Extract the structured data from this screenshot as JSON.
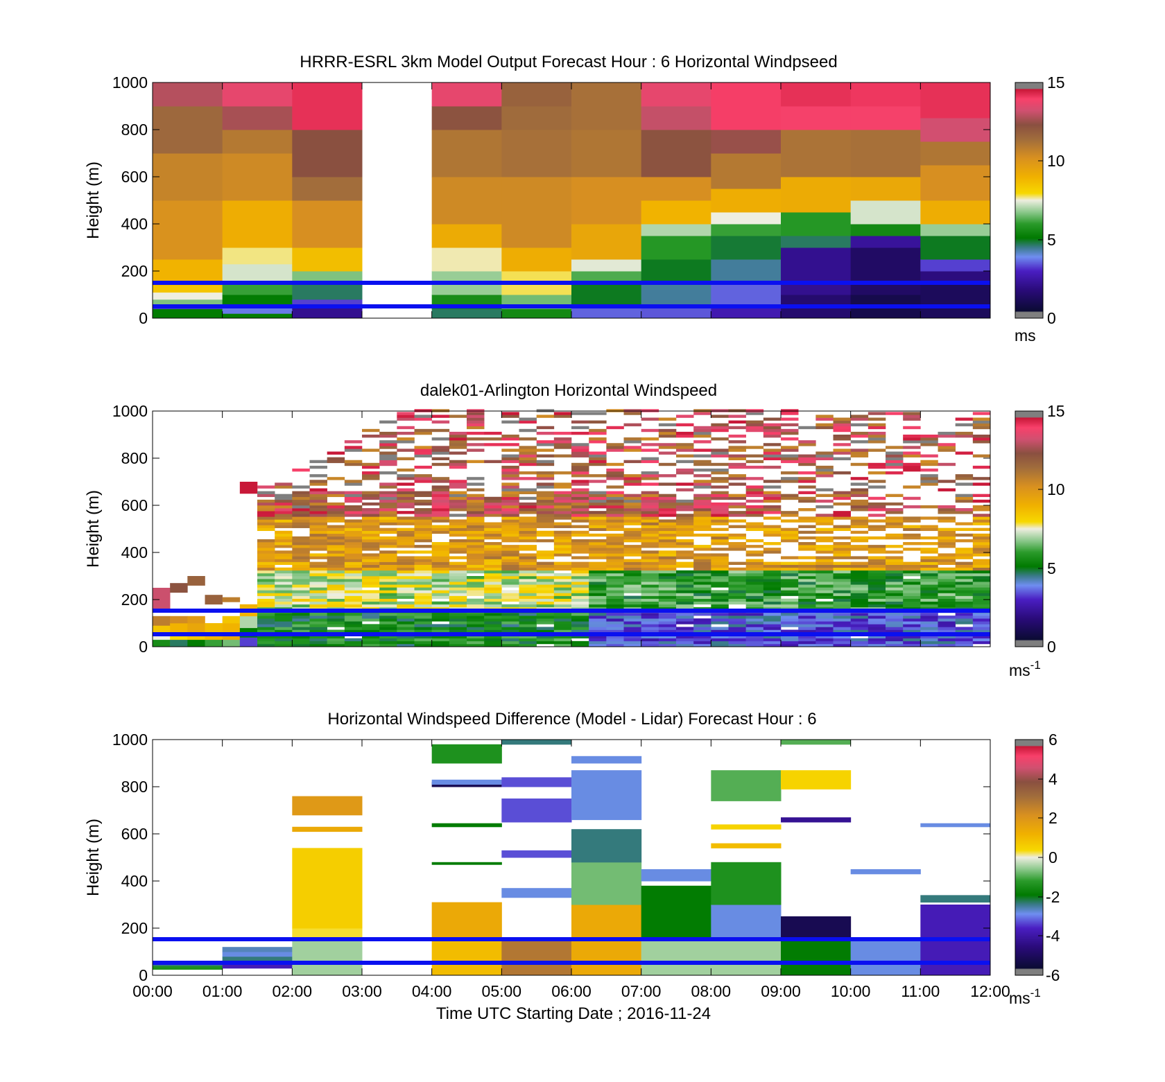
{
  "chart_data": [
    {
      "type": "heatmap",
      "title": "HRRR-ESRL 3km Model Output   Forecast Hour : 6 Horizontal Windpseed",
      "ylabel": "Height (m)",
      "xlabel": "",
      "ylim": [
        0,
        1000
      ],
      "xlim": [
        0,
        12
      ],
      "yticks": [
        "0",
        "200",
        "400",
        "600",
        "800",
        "1000"
      ],
      "xticks": [],
      "colorbar": {
        "min": 0,
        "max": 15,
        "ticks": [
          "0",
          "5",
          "10",
          "15"
        ],
        "unit_base": "ms",
        "unit_exp": ""
      },
      "reference_lines_m": [
        50,
        150
      ],
      "reference_line_color": "#0a10f0",
      "grid": false,
      "missing_hours": [
        3
      ],
      "columns": [
        [
          [
            0,
            40,
            5
          ],
          [
            40,
            60,
            3
          ],
          [
            60,
            80,
            6.6
          ],
          [
            80,
            110,
            7.5
          ],
          [
            110,
            140,
            8.5
          ],
          [
            140,
            250,
            9
          ],
          [
            250,
            500,
            10.3
          ],
          [
            500,
            700,
            10.8
          ],
          [
            700,
            900,
            11.8
          ],
          [
            900,
            1000,
            13.2
          ]
        ],
        [
          [
            0,
            20,
            5
          ],
          [
            20,
            50,
            3.5
          ],
          [
            50,
            100,
            5
          ],
          [
            100,
            150,
            6
          ],
          [
            150,
            230,
            7.3
          ],
          [
            230,
            300,
            7.7
          ],
          [
            300,
            500,
            9.2
          ],
          [
            500,
            700,
            10.6
          ],
          [
            700,
            800,
            11.2
          ],
          [
            800,
            900,
            13
          ],
          [
            900,
            1000,
            14
          ]
        ],
        [
          [
            0,
            50,
            1.8
          ],
          [
            50,
            80,
            3
          ],
          [
            80,
            150,
            4.5
          ],
          [
            150,
            200,
            6.6
          ],
          [
            200,
            300,
            8.7
          ],
          [
            300,
            500,
            10.4
          ],
          [
            500,
            600,
            11.6
          ],
          [
            600,
            800,
            12.6
          ],
          [
            800,
            1000,
            14.6
          ]
        ],
        [],
        [
          [
            0,
            40,
            4.5
          ],
          [
            40,
            100,
            5.5
          ],
          [
            100,
            200,
            6.8
          ],
          [
            200,
            300,
            7.6
          ],
          [
            300,
            400,
            9.3
          ],
          [
            400,
            600,
            10.6
          ],
          [
            600,
            800,
            11.3
          ],
          [
            800,
            900,
            12.5
          ],
          [
            900,
            1000,
            14
          ]
        ],
        [
          [
            0,
            40,
            5.4
          ],
          [
            40,
            100,
            6.5
          ],
          [
            100,
            200,
            7.8
          ],
          [
            200,
            300,
            9.2
          ],
          [
            300,
            600,
            10.6
          ],
          [
            600,
            800,
            11.5
          ],
          [
            800,
            900,
            11.7
          ],
          [
            900,
            1000,
            12
          ]
        ],
        [
          [
            0,
            50,
            3.3
          ],
          [
            50,
            150,
            4.8
          ],
          [
            150,
            200,
            6.2
          ],
          [
            200,
            250,
            7.4
          ],
          [
            250,
            400,
            9.5
          ],
          [
            400,
            600,
            10.4
          ],
          [
            600,
            800,
            11.3
          ],
          [
            800,
            1000,
            11.5
          ]
        ],
        [
          [
            0,
            50,
            3.2
          ],
          [
            50,
            150,
            4.2
          ],
          [
            150,
            250,
            4.8
          ],
          [
            250,
            350,
            5.8
          ],
          [
            350,
            400,
            7
          ],
          [
            400,
            500,
            9
          ],
          [
            500,
            600,
            10.4
          ],
          [
            600,
            800,
            12.5
          ],
          [
            800,
            900,
            13.4
          ],
          [
            900,
            1000,
            14
          ]
        ],
        [
          [
            0,
            50,
            2.4
          ],
          [
            50,
            150,
            3.3
          ],
          [
            150,
            250,
            4.2
          ],
          [
            250,
            350,
            4.7
          ],
          [
            350,
            400,
            6
          ],
          [
            400,
            450,
            7.5
          ],
          [
            450,
            550,
            9.2
          ],
          [
            550,
            700,
            11.2
          ],
          [
            700,
            800,
            12.8
          ],
          [
            800,
            1000,
            14.4
          ]
        ],
        [
          [
            0,
            100,
            1.2
          ],
          [
            100,
            300,
            1.8
          ],
          [
            300,
            350,
            4.5
          ],
          [
            350,
            450,
            5.8
          ],
          [
            450,
            600,
            9.3
          ],
          [
            600,
            800,
            11.4
          ],
          [
            800,
            900,
            14.3
          ],
          [
            900,
            1000,
            14.6
          ]
        ],
        [
          [
            0,
            100,
            0.5
          ],
          [
            100,
            300,
            1
          ],
          [
            300,
            350,
            2
          ],
          [
            350,
            400,
            5.4
          ],
          [
            400,
            500,
            7.3
          ],
          [
            500,
            600,
            9.4
          ],
          [
            600,
            800,
            11.5
          ],
          [
            800,
            900,
            14.3
          ],
          [
            900,
            1000,
            14.5
          ]
        ],
        [
          [
            0,
            150,
            0.8
          ],
          [
            150,
            200,
            1.5
          ],
          [
            200,
            250,
            3
          ],
          [
            250,
            350,
            4.8
          ],
          [
            350,
            400,
            6.8
          ],
          [
            400,
            500,
            9.2
          ],
          [
            500,
            650,
            10.4
          ],
          [
            650,
            750,
            11.3
          ],
          [
            750,
            850,
            13.6
          ],
          [
            850,
            1000,
            14.6
          ]
        ]
      ]
    },
    {
      "type": "heatmap",
      "title": "dalek01-Arlington  Horizontal Windspeed",
      "ylabel": "Height (m)",
      "xlabel": "",
      "ylim": [
        0,
        1000
      ],
      "xlim": [
        0,
        12
      ],
      "yticks": [
        "0",
        "200",
        "400",
        "600",
        "800",
        "1000"
      ],
      "xticks": [],
      "colorbar": {
        "min": 0,
        "max": 15,
        "ticks": [
          "0",
          "5",
          "10",
          "15"
        ],
        "unit_base": "ms",
        "unit_exp": "-1"
      },
      "reference_lines_m": [
        50,
        150
      ],
      "reference_line_color": "#0a10f0",
      "grid": false,
      "profile_interval_h": 0.25,
      "range_gate_m": 12,
      "columns_0000_0115": [
        [
          [
            0,
            30,
            5.5
          ],
          [
            30,
            60,
            7.5
          ],
          [
            60,
            90,
            8.5
          ],
          [
            90,
            130,
            11
          ],
          [
            150,
            250,
            13.5
          ]
        ],
        [
          [
            0,
            30,
            4.5
          ],
          [
            30,
            60,
            8
          ],
          [
            60,
            100,
            9
          ],
          [
            100,
            130,
            10.5
          ],
          [
            230,
            270,
            12.5
          ]
        ],
        [
          [
            0,
            30,
            5
          ],
          [
            30,
            60,
            8.5
          ],
          [
            60,
            100,
            9.5
          ],
          [
            100,
            130,
            10
          ],
          [
            260,
            300,
            12
          ]
        ],
        [
          [
            0,
            30,
            6
          ],
          [
            30,
            60,
            9
          ],
          [
            60,
            100,
            8.8
          ],
          [
            180,
            220,
            12
          ]
        ],
        [
          [
            0,
            30,
            6.5
          ],
          [
            30,
            60,
            9.5
          ],
          [
            60,
            100,
            9
          ],
          [
            100,
            130,
            8.5
          ],
          [
            190,
            210,
            11
          ]
        ],
        [
          [
            0,
            40,
            3
          ],
          [
            40,
            80,
            5
          ],
          [
            80,
            130,
            7
          ],
          [
            130,
            180,
            9
          ],
          [
            650,
            700,
            15
          ]
        ]
      ]
    },
    {
      "type": "heatmap",
      "title": "Horizontal Windspeed Difference (Model - Lidar) Forecast Hour : 6",
      "ylabel": "Height (m)",
      "xlabel": "Time UTC  Starting Date ; 2016-11-24",
      "ylim": [
        0,
        1000
      ],
      "xlim": [
        0,
        12
      ],
      "yticks": [
        "0",
        "200",
        "400",
        "600",
        "800",
        "1000"
      ],
      "xticks": [
        "00:00",
        "01:00",
        "02:00",
        "03:00",
        "04:00",
        "05:00",
        "06:00",
        "07:00",
        "08:00",
        "09:00",
        "10:00",
        "11:00",
        "12:00"
      ],
      "colorbar": {
        "min": -6,
        "max": 6,
        "ticks": [
          "-6",
          "-4",
          "-2",
          "0",
          "2",
          "4",
          "6"
        ],
        "unit_base": "ms",
        "unit_exp": "-1"
      },
      "reference_lines_m": [
        50,
        150
      ],
      "reference_line_color": "#0a10f0",
      "grid": false,
      "columns": [
        [
          [
            25,
            40,
            -1.5
          ],
          [
            40,
            55,
            -2.5
          ]
        ],
        [
          [
            30,
            50,
            -4
          ],
          [
            60,
            80,
            -2.5
          ],
          [
            80,
            100,
            -3
          ],
          [
            100,
            120,
            -2.8
          ]
        ],
        [
          [
            0,
            150,
            -0.5
          ],
          [
            150,
            200,
            0.3
          ],
          [
            200,
            540,
            0.6
          ],
          [
            610,
            630,
            1.5
          ],
          [
            680,
            760,
            2
          ]
        ],
        [],
        [
          [
            0,
            150,
            1
          ],
          [
            150,
            310,
            1.5
          ],
          [
            470,
            480,
            -2
          ],
          [
            630,
            645,
            -2
          ],
          [
            800,
            820,
            -5.5
          ],
          [
            810,
            830,
            -3
          ],
          [
            900,
            980,
            -1.5
          ]
        ],
        [
          [
            0,
            150,
            3
          ],
          [
            330,
            370,
            -3
          ],
          [
            500,
            530,
            -3.5
          ],
          [
            650,
            750,
            -3.5
          ],
          [
            800,
            840,
            -3.5
          ],
          [
            980,
            1000,
            -2.5
          ]
        ],
        [
          [
            0,
            300,
            1.5
          ],
          [
            300,
            480,
            -0.8
          ],
          [
            480,
            620,
            -2.5
          ],
          [
            660,
            870,
            -3
          ],
          [
            900,
            930,
            -3
          ]
        ],
        [
          [
            0,
            150,
            -0.5
          ],
          [
            150,
            380,
            -2
          ],
          [
            400,
            450,
            -3
          ]
        ],
        [
          [
            0,
            150,
            -0.5
          ],
          [
            150,
            300,
            -3
          ],
          [
            300,
            480,
            -1.5
          ],
          [
            540,
            560,
            1
          ],
          [
            620,
            640,
            0.5
          ],
          [
            740,
            870,
            -1
          ]
        ],
        [
          [
            0,
            150,
            -2
          ],
          [
            150,
            250,
            -5.5
          ],
          [
            650,
            670,
            -4.5
          ],
          [
            790,
            870,
            0.5
          ],
          [
            980,
            1000,
            -1
          ]
        ],
        [
          [
            0,
            150,
            -3
          ],
          [
            430,
            450,
            -3
          ]
        ],
        [
          [
            0,
            150,
            -4
          ],
          [
            150,
            300,
            -4
          ],
          [
            310,
            340,
            -2.5
          ],
          [
            630,
            645,
            -3
          ]
        ]
      ]
    }
  ]
}
